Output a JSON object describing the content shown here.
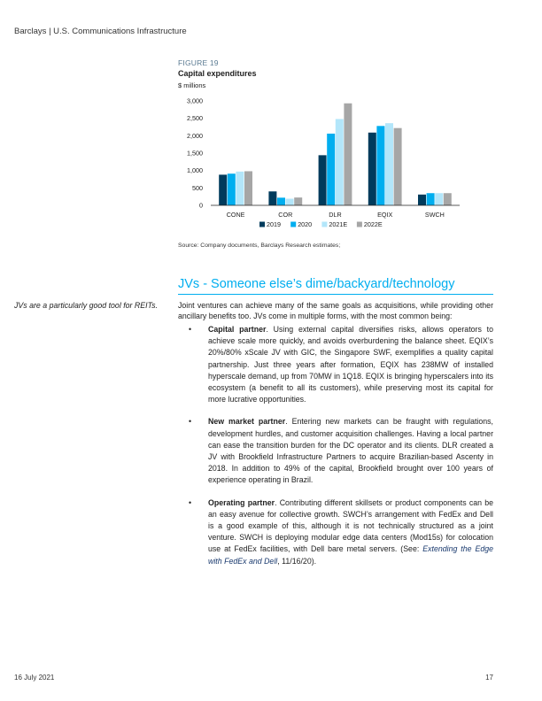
{
  "header": {
    "text": "Barclays | U.S. Communications Infrastructure"
  },
  "figure": {
    "label": "FIGURE 19",
    "title": "Capital expenditures",
    "source": "Source: Company documents, Barclays Research estimates;"
  },
  "chart_data": {
    "type": "bar",
    "title": "Capital expenditures",
    "ylabel": "$ millions",
    "categories": [
      "CONE",
      "COR",
      "DLR",
      "EQIX",
      "SWCH"
    ],
    "ylim": [
      0,
      3000
    ],
    "yticks": [
      "0",
      "500",
      "1,000",
      "1,500",
      "2,000",
      "2,500",
      "3,000"
    ],
    "ytick_values": [
      0,
      500,
      1000,
      1500,
      2000,
      2500,
      3000
    ],
    "legend_position": "bottom",
    "grid": false,
    "series": [
      {
        "name": "2019",
        "color": "#003b5c",
        "values": [
          880,
          400,
          1440,
          2090,
          310
        ]
      },
      {
        "name": "2020",
        "color": "#00aeef",
        "values": [
          910,
          220,
          2060,
          2280,
          350
        ]
      },
      {
        "name": "2021E",
        "color": "#b3e6fa",
        "values": [
          970,
          190,
          2480,
          2360,
          350
        ]
      },
      {
        "name": "2022E",
        "color": "#a6a6a6",
        "values": [
          980,
          225,
          2930,
          2220,
          350
        ]
      }
    ]
  },
  "section": {
    "title": "JVs - Someone else’s dime/backyard/technology",
    "sidenote": "JVs are a particularly good tool for REITs.",
    "intro": "Joint ventures can achieve many of the same goals as acquisitions, while providing other ancillary benefits too. JVs come in multiple forms, with the most common being:",
    "bullets": [
      {
        "title": "Capital partner",
        "text": ". Using external capital diversifies risks, allows operators to achieve scale more quickly, and avoids overburdening the balance sheet. EQIX’s 20%/80% xScale JV with GIC, the Singapore SWF, exemplifies a quality capital partnership. Just three years after formation, EQIX has 238MW of installed hyperscale demand, up from 70MW in 1Q18. EQIX is bringing hyperscalers into its ecosystem (a benefit to all its customers), while preserving most its capital for more lucrative opportunities."
      },
      {
        "title": "New market partner",
        "text": ". Entering new markets can be fraught with regulations, development hurdles, and customer acquisition challenges. Having a local partner can ease the transition burden for the DC operator and its clients. DLR created a JV with Brookfield Infrastructure Partners to acquire Brazilian-based Ascenty in 2018. In addition to 49% of the capital, Brookfield brought over 100 years of experience operating in Brazil."
      },
      {
        "title": "Operating partner",
        "text": ". Contributing different skillsets or product components can be an easy avenue for collective growth. SWCH’s arrangement with FedEx and Dell is a good example of this, although it is not technically structured as a joint venture. SWCH is deploying modular edge data centers (Mod15s) for colocation use at FedEx facilities, with Dell bare metal servers. (See: ",
        "link": "Extending the Edge with FedEx and Dell",
        "after": ", 11/16/20)."
      }
    ]
  },
  "footer": {
    "date": "16 July 2021",
    "page": "17"
  }
}
